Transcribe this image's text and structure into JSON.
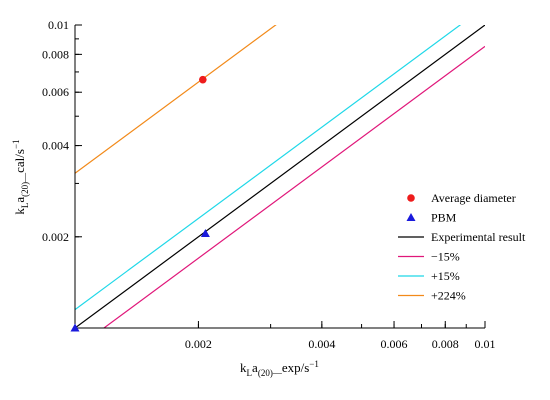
{
  "chart_data": {
    "type": "line",
    "xscale": "log",
    "yscale": "log",
    "xlim": [
      0.001,
      0.01
    ],
    "ylim": [
      0.001,
      0.01
    ],
    "xlabel": {
      "main": "k",
      "sub1": "L",
      "mid": "a",
      "sub2": "(20)",
      "end": "exp/s",
      "sup": "−1"
    },
    "ylabel": {
      "main": "k",
      "sub1": "L",
      "mid": "a",
      "sub2": "(20)",
      "end": "cal/s",
      "sup": "−1"
    },
    "x_ticks": [
      {
        "value": 0.002,
        "label": "0.002"
      },
      {
        "value": 0.004,
        "label": "0.004"
      },
      {
        "value": 0.006,
        "label": "0.006"
      },
      {
        "value": 0.008,
        "label": "0.008"
      },
      {
        "value": 0.01,
        "label": "0.01"
      }
    ],
    "y_ticks": [
      {
        "value": 0.002,
        "label": "0.002"
      },
      {
        "value": 0.004,
        "label": "0.004"
      },
      {
        "value": 0.006,
        "label": "0.006"
      },
      {
        "value": 0.008,
        "label": "0.008"
      },
      {
        "value": 0.01,
        "label": "0.01"
      }
    ],
    "grid": false,
    "legend_position": "right",
    "series": [
      {
        "name": "Average diameter",
        "kind": "scatter",
        "marker": "circle",
        "color": "#ee1c1c",
        "points": [
          [
            0.00205,
            0.0066
          ]
        ]
      },
      {
        "name": "PBM",
        "kind": "scatter",
        "marker": "triangle",
        "color": "#1a1adc",
        "points": [
          [
            0.001,
            0.001
          ],
          [
            0.00208,
            0.00205
          ]
        ]
      },
      {
        "name": "Experimental result",
        "kind": "line",
        "color": "#000000",
        "slope": 1.0
      },
      {
        "name": "−15%",
        "kind": "line",
        "color": "#e0177a",
        "slope": 0.85
      },
      {
        "name": "+15%",
        "kind": "line",
        "color": "#1fd8e8",
        "slope": 1.15
      },
      {
        "name": "+224%",
        "kind": "line",
        "color": "#f28a1a",
        "slope": 3.24
      }
    ]
  }
}
